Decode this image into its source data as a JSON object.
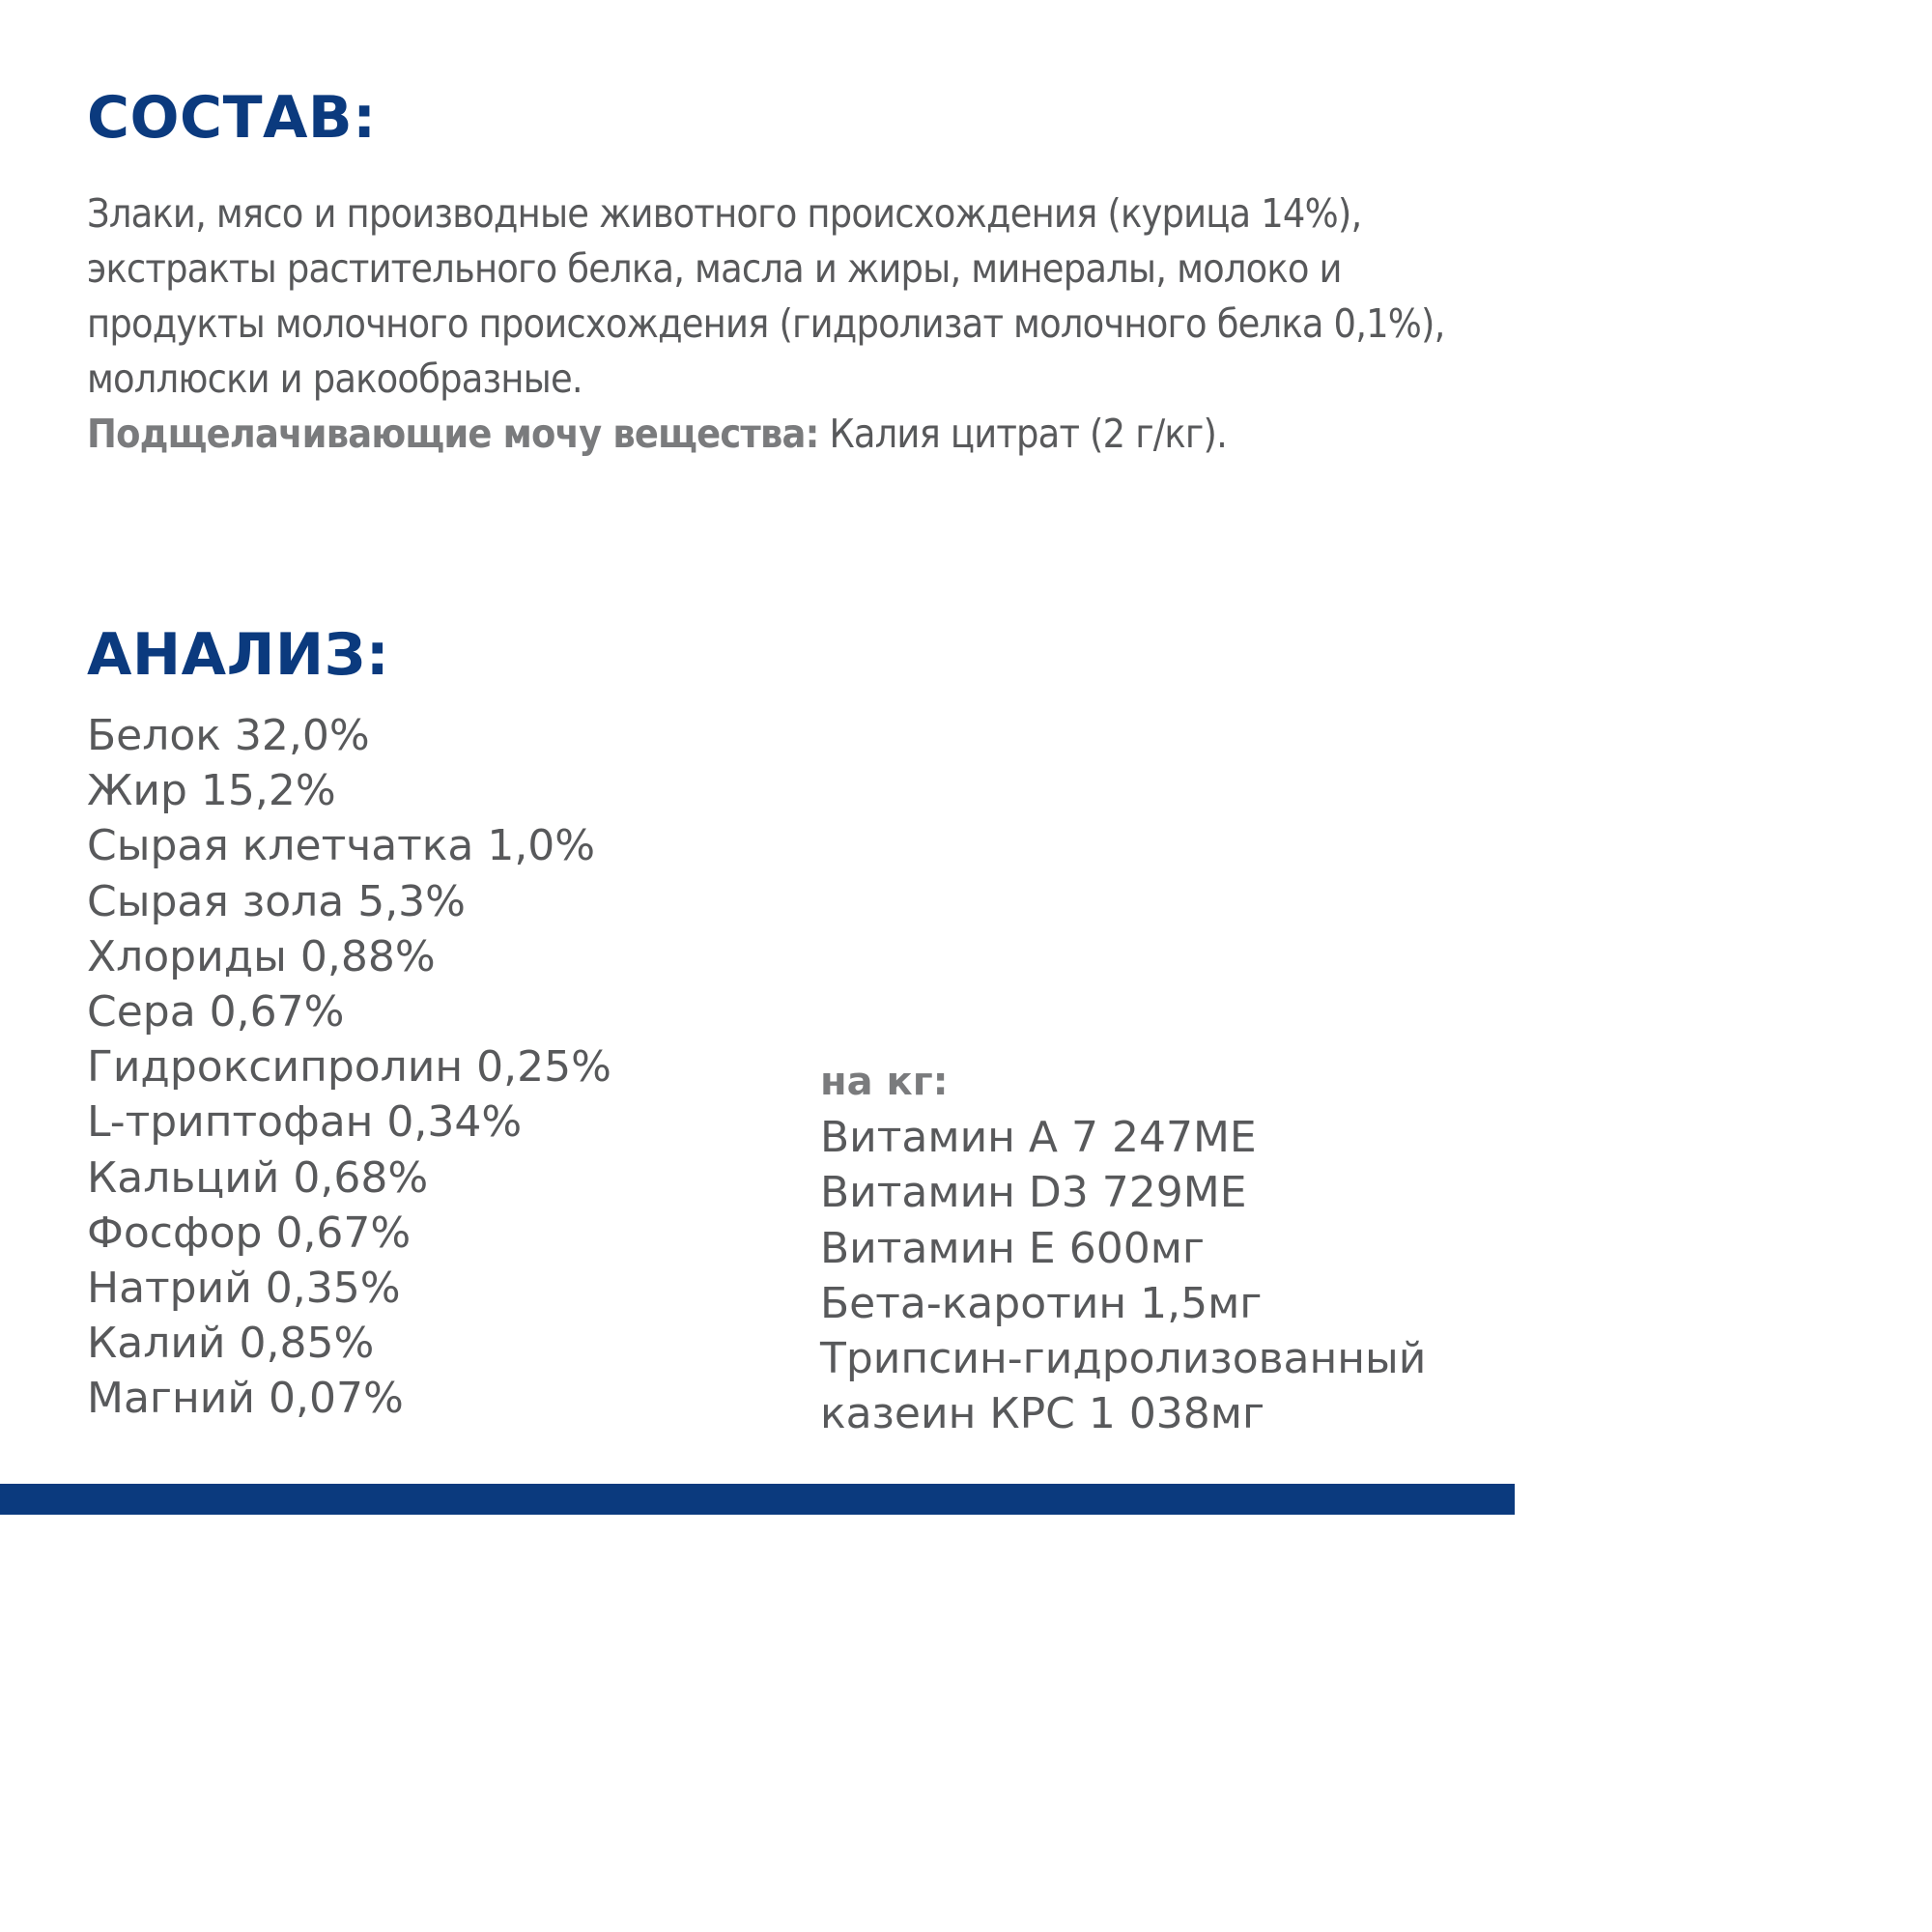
{
  "composition": {
    "heading": "СОСТАВ:",
    "text": "Злаки, мясо и производные животного происхождения (курица 14%), экстракты растительного белка, масла и жиры, минералы, молоко и продукты молочного происхождения (гидролизат молочного белка 0,1%), моллюски и ракообразные.",
    "urine_label": "Подщелачивающие мочу вещества:",
    "urine_value": " Калия цитрат (2 г/кг)."
  },
  "analysis": {
    "heading": "АНАЛИЗ:",
    "items": [
      "Белок 32,0%",
      "Жир 15,2%",
      "Сырая клетчатка 1,0%",
      "Сырая зола 5,3%",
      "Хлориды 0,88%",
      "Сера 0,67%",
      "Гидроксипролин 0,25%",
      "L-триптофан 0,34%",
      "Кальций 0,68%",
      "Фосфор 0,67%",
      "Натрий 0,35%",
      "Калий 0,85%",
      "Магний 0,07%"
    ]
  },
  "per_kg": {
    "label": "на кг:",
    "items": [
      "Витамин А 7 247МЕ",
      "Витамин D3 729МЕ",
      "Витамин Е 600мг",
      "Бета-каротин 1,5мг",
      "Трипсин-гидролизованный",
      "казеин КРС 1 038мг"
    ]
  },
  "colors": {
    "heading": "#0b3a7e",
    "body_text": "#58595b",
    "bold_label": "#7a7b7d",
    "bottom_bar": "#0b3a7e"
  }
}
